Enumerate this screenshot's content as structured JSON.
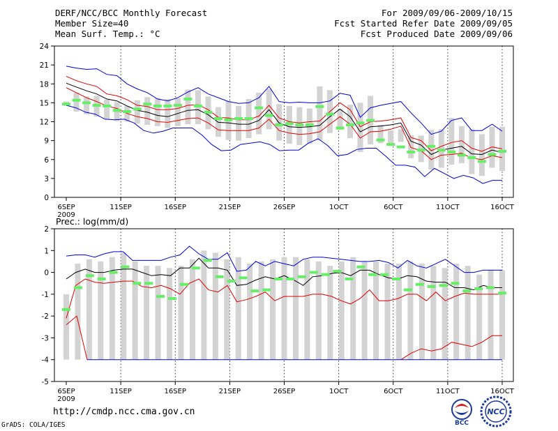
{
  "header": {
    "title": "DERF/NCC/BCC Monthly Forecast",
    "member_size": "Member Size=40",
    "variable": "Mean Surf. Temp.: °C",
    "period": "For 2009/09/06-2009/10/15",
    "fcst_started": "Fcst Started Refer Date 2009/09/05",
    "fcst_produced": "Fcst Produced Date 2009/09/06"
  },
  "footer": {
    "url": "http://cmdp.ncc.cma.gov.cn",
    "grads": "GrADS: COLA/IGES",
    "logo_bcc": "BCC",
    "logo_ncc": "NCC"
  },
  "colors": {
    "box": "#d3d3d3",
    "median": "#000000",
    "percentile": "#e00000",
    "extreme": "#0000dd",
    "ensemble_mean": "#66ee66"
  },
  "chart_data": [
    {
      "type": "line",
      "title": "Mean Surf. Temp.: °C",
      "x_ticks": [
        "6SEP\n2009",
        "11SEP",
        "16SEP",
        "21SEP",
        "26SEP",
        "1OCT",
        "6OCT",
        "11OCT",
        "16OCT"
      ],
      "x_tick_days": [
        0,
        5,
        10,
        15,
        20,
        25,
        30,
        35,
        40
      ],
      "ylim": [
        0,
        24
      ],
      "y_ticks": [
        0,
        3,
        6,
        9,
        12,
        15,
        18,
        21,
        24
      ],
      "days": 40,
      "series": [
        {
          "name": "max",
          "values": [
            20.8,
            20.5,
            20.3,
            20.4,
            19.5,
            19.3,
            18.0,
            17.2,
            16.6,
            15.6,
            15.3,
            15.8,
            16.7,
            17.4,
            16.4,
            15.8,
            15.2,
            14.9,
            15.0,
            15.8,
            17.6,
            15.2,
            15.0,
            15.1,
            15.0,
            15.0,
            15.3,
            16.5,
            16.2,
            12.7,
            14.2,
            14.6,
            14.9,
            15.2,
            13.4,
            11.8,
            10.0,
            10.5,
            12.2,
            12.6,
            10.6,
            10.6,
            11.6,
            10.5
          ]
        },
        {
          "name": "p90",
          "values": [
            19.2,
            18.5,
            18.0,
            17.6,
            16.4,
            16.1,
            15.5,
            14.6,
            14.4,
            13.9,
            13.9,
            14.1,
            14.6,
            14.7,
            13.9,
            12.7,
            12.6,
            12.3,
            12.3,
            12.9,
            14.6,
            12.6,
            12.0,
            11.8,
            12.0,
            12.1,
            13.6,
            15.0,
            13.9,
            11.2,
            12.0,
            12.1,
            12.3,
            12.6,
            9.5,
            9.0,
            7.4,
            8.1,
            8.7,
            9.0,
            7.8,
            7.3,
            8.0,
            7.7
          ]
        },
        {
          "name": "median",
          "values": [
            18.1,
            17.5,
            16.9,
            16.4,
            15.6,
            15.3,
            14.5,
            13.8,
            13.5,
            13.0,
            12.8,
            13.3,
            13.8,
            13.9,
            13.1,
            11.9,
            11.8,
            11.6,
            11.6,
            12.2,
            13.9,
            11.8,
            11.2,
            11.1,
            11.2,
            11.4,
            12.8,
            14.0,
            12.8,
            10.4,
            11.2,
            11.3,
            11.5,
            11.8,
            8.9,
            8.3,
            6.8,
            7.5,
            7.8,
            8.1,
            6.9,
            6.8,
            7.5,
            7.1
          ]
        },
        {
          "name": "p10",
          "values": [
            17.4,
            16.6,
            15.8,
            15.2,
            14.5,
            14.1,
            13.3,
            12.8,
            12.5,
            12.0,
            11.9,
            12.2,
            12.5,
            12.6,
            11.8,
            10.7,
            10.6,
            10.6,
            10.6,
            11.0,
            12.4,
            10.6,
            10.2,
            10.0,
            10.1,
            10.4,
            11.6,
            12.8,
            11.6,
            9.4,
            10.4,
            10.5,
            10.8,
            11.3,
            7.9,
            7.4,
            6.0,
            6.7,
            6.8,
            7.0,
            6.2,
            6.0,
            6.6,
            6.3
          ]
        },
        {
          "name": "min",
          "values": [
            14.6,
            14.2,
            13.5,
            13.2,
            12.4,
            12.3,
            12.4,
            11.8,
            10.6,
            10.2,
            10.5,
            11.0,
            11.0,
            11.0,
            9.9,
            8.4,
            7.4,
            7.5,
            8.4,
            8.6,
            8.8,
            8.4,
            7.4,
            7.5,
            7.5,
            8.6,
            9.3,
            8.2,
            6.6,
            6.8,
            7.6,
            7.8,
            7.8,
            6.5,
            5.1,
            5.1,
            4.8,
            3.3,
            4.6,
            3.8,
            3.0,
            3.5,
            3.1,
            2.2,
            2.7,
            2.7
          ]
        }
      ],
      "ensemble_mean": [
        14.8,
        15.4,
        15.0,
        14.6,
        14.5,
        13.8,
        13.6,
        14.0,
        14.8,
        14.5,
        14.5,
        14.6,
        15.6,
        14.5,
        13.5,
        12.5,
        12.3,
        12.5,
        12.5,
        14.2,
        13.0,
        11.5,
        11.7,
        11.5,
        11.5,
        14.4,
        13.2,
        11.0,
        11.5,
        11.8,
        12.2,
        9.1,
        8.4,
        8.0,
        7.2,
        7.5,
        8.1,
        7.5,
        7.2,
        6.7,
        6.3,
        5.7,
        6.8,
        7.3
      ],
      "box_hi": [
        15.2,
        16.6,
        16.0,
        16.1,
        15.5,
        15.1,
        14.5,
        15.4,
        15.9,
        15.7,
        15.6,
        15.7,
        17.1,
        17.0,
        16.0,
        14.3,
        15.3,
        14.5,
        15.6,
        16.6,
        17.2,
        14.8,
        14.5,
        14.3,
        14.1,
        17.6,
        17.0,
        14.0,
        14.7,
        15.0,
        16.1,
        11.5,
        10.6,
        10.8,
        9.8,
        9.8,
        10.7,
        10.8,
        12.6,
        11.3,
        10.8,
        10.0,
        11.2,
        11.2
      ],
      "box_lo": [
        14.5,
        13.6,
        13.2,
        12.8,
        12.4,
        12.1,
        12.0,
        11.7,
        11.5,
        11.3,
        11.0,
        11.3,
        11.6,
        11.6,
        10.8,
        9.6,
        9.1,
        9.0,
        9.4,
        10.0,
        10.8,
        9.0,
        8.5,
        8.3,
        8.5,
        9.0,
        10.2,
        10.7,
        9.4,
        7.2,
        8.4,
        8.6,
        8.6,
        8.8,
        6.2,
        5.6,
        4.4,
        4.7,
        5.2,
        5.4,
        3.7,
        3.4,
        4.7,
        4.2
      ]
    },
    {
      "type": "line",
      "title": "Prec.: log(mm/d)",
      "x_ticks": [
        "6SEP\n2009",
        "11SEP",
        "16SEP",
        "21SEP",
        "26SEP",
        "1OCT",
        "6OCT",
        "11OCT",
        "16OCT"
      ],
      "x_tick_days": [
        0,
        5,
        10,
        15,
        20,
        25,
        30,
        35,
        40
      ],
      "ylim": [
        -5,
        2
      ],
      "y_ticks": [
        -5,
        -4,
        -3,
        -2,
        -1,
        0,
        1,
        2
      ],
      "days": 40,
      "series": [
        {
          "name": "max",
          "values": [
            0.75,
            0.8,
            0.8,
            0.7,
            0.85,
            0.95,
            0.95,
            0.55,
            0.55,
            0.55,
            0.55,
            0.7,
            0.8,
            1.2,
            0.85,
            0.6,
            0.6,
            0.9,
            0.05,
            0.1,
            0.5,
            0.3,
            0.5,
            0.4,
            0.3,
            0.6,
            0.7,
            0.7,
            0.65,
            0.6,
            0.55,
            0.5,
            0.5,
            0.55,
            0.45,
            0.2,
            0.55,
            0.3,
            0.2,
            0.4,
            0.6,
            0.3,
            0.0,
            0.0,
            0.1,
            0.1,
            0.1
          ]
        },
        {
          "name": "median",
          "values": [
            -0.3,
            0.0,
            0.15,
            0.0,
            0.0,
            0.1,
            0.15,
            0.15,
            0.0,
            -0.15,
            -0.1,
            -0.15,
            0.2,
            0.2,
            0.65,
            0.2,
            0.2,
            0.1,
            -0.6,
            -0.55,
            -0.35,
            -0.2,
            -0.3,
            -0.15,
            -0.35,
            -0.6,
            -0.2,
            -0.15,
            -0.05,
            0.0,
            -0.15,
            0.1,
            0.1,
            -0.1,
            -0.25,
            -0.3,
            -0.15,
            -0.2,
            -0.4,
            -0.45,
            -0.45,
            -0.7,
            -0.7,
            -0.8,
            -0.6,
            -0.7,
            -0.7
          ]
        },
        {
          "name": "p10",
          "values": [
            -2.1,
            -0.6,
            -0.3,
            -0.45,
            -0.5,
            -0.45,
            -0.4,
            -0.4,
            -0.65,
            -0.7,
            -0.6,
            -0.75,
            -1.0,
            -0.5,
            -0.3,
            -0.8,
            -0.9,
            -0.6,
            -1.35,
            -1.25,
            -1.1,
            -0.9,
            -1.3,
            -1.1,
            -1.1,
            -1.1,
            -1.0,
            -1.0,
            -1.1,
            -1.3,
            -1.45,
            -1.2,
            -0.8,
            -1.3,
            -1.3,
            -1.2,
            -1.0,
            -1.0,
            -1.3,
            -0.9,
            -1.3,
            -1.1,
            -0.95,
            -1.0,
            -1.0,
            -1.0,
            -1.0
          ]
        },
        {
          "name": "p10_low",
          "values": [
            -2.4,
            -2.0,
            -4.0
          ]
        },
        {
          "name": "p10_tail",
          "values": [
            -4.0,
            -3.7,
            -3.5,
            -3.6,
            -3.5,
            -3.2,
            -3.3,
            -3.4,
            -3.2,
            -2.9,
            -2.9
          ]
        }
      ],
      "ensemble_mean": [
        -1.7,
        -0.7,
        -0.15,
        -0.3,
        0.0,
        0.25,
        -0.5,
        -0.5,
        -1.1,
        -1.2,
        -0.55,
        0.2,
        0.55,
        -0.2,
        -0.4,
        -0.25,
        -0.85,
        -0.8,
        -0.3,
        -0.3,
        -0.2,
        0.0,
        -0.1,
        0.05,
        -0.3,
        0.25,
        -0.1,
        -0.1,
        -0.3,
        -0.8,
        -0.55,
        -0.65,
        -0.6,
        -0.5,
        -0.85,
        -0.75,
        -0.7,
        -0.95
      ],
      "box_hi": [
        -1.0,
        0.4,
        0.6,
        0.5,
        0.7,
        0.9,
        0.5,
        0.3,
        0.3,
        0.2,
        0.3,
        0.6,
        1.0,
        0.9,
        0.6,
        0.7,
        0.4,
        0.5,
        0.6,
        0.7,
        0.7,
        0.6,
        0.5,
        0.3,
        0.5,
        0.7,
        0.5,
        0.5,
        0.4,
        0.4,
        0.5,
        0.4,
        0.3,
        0.2,
        0.4,
        0.3,
        -0.1,
        0.1,
        0.1
      ],
      "box_lo": [
        -4.0,
        -4.0,
        -4.0,
        -4.0,
        -4.0,
        -4.0,
        -4.0,
        -4.0,
        -4.0,
        -4.0,
        -4.0,
        -4.0,
        -4.0,
        -4.0,
        -4.0,
        -4.0,
        -4.0,
        -4.0,
        -4.0,
        -4.0,
        -4.0,
        -4.0,
        -4.0,
        -4.0,
        -4.0,
        -4.0,
        -4.0,
        -4.0,
        -4.0,
        -4.0,
        -4.0,
        -4.0,
        -4.0,
        -4.0,
        -4.0,
        -4.0,
        -4.0,
        -4.0,
        -4.0
      ]
    }
  ]
}
